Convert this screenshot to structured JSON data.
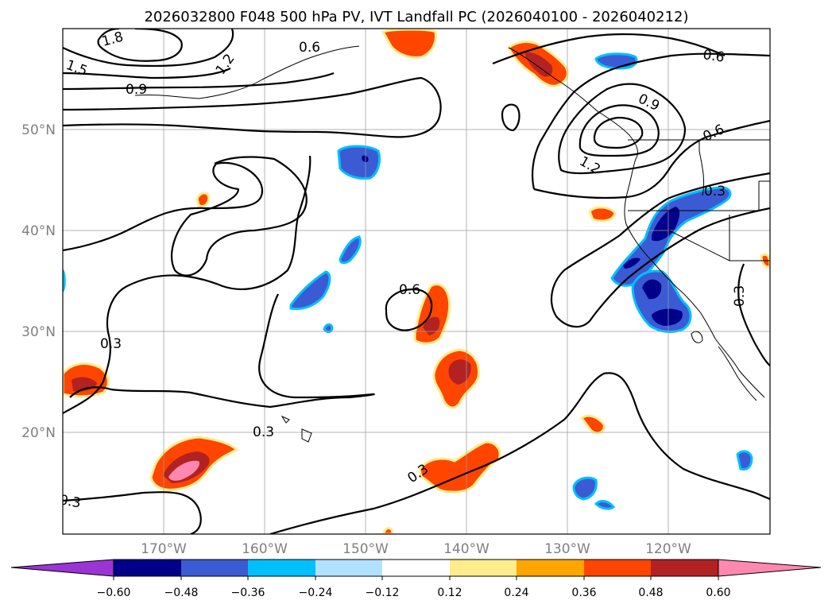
{
  "title": "2026032800 F048 500 hPa PV, IVT Landfall PC (2026040100 - 2026040212)",
  "lat_labels": [
    "50°N",
    "40°N",
    "30°N",
    "20°N"
  ],
  "lon_labels": [
    "170°W",
    "160°W",
    "150°W",
    "140°W",
    "130°W",
    "120°W"
  ],
  "contour_labels": [
    "1.8",
    "1.5",
    "1.2",
    "0.9",
    "0.6",
    "0.6",
    "0.9",
    "1.2",
    "0.6",
    "0.3",
    "0.6",
    "0.3",
    "0.3",
    "0.3",
    "0.3",
    "0.3"
  ],
  "colorbar": {
    "ticks": [
      "−0.60",
      "−0.48",
      "−0.36",
      "−0.24",
      "−0.12",
      "0.12",
      "0.24",
      "0.36",
      "0.48",
      "0.60"
    ],
    "colors": [
      "#9a34d4",
      "#00008b",
      "#3a5bd4",
      "#00bfff",
      "#b0e2ff",
      "#ffffff",
      "#ffec8b",
      "#ffa500",
      "#ff4500",
      "#b22222",
      "#ff88b0",
      "#ff88b0"
    ]
  },
  "map_colors": {
    "neg_light": "#00bfff",
    "neg_mid": "#3a5bd4",
    "neg_dark": "#00008b",
    "pos_light": "#ffec8b",
    "pos_orange": "#ffa500",
    "pos_red": "#ff4500",
    "pos_dark": "#b22222",
    "pos_pink": "#ff88b0"
  }
}
